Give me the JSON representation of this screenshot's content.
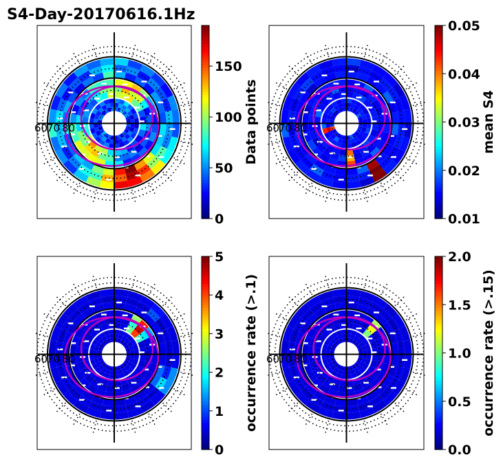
{
  "figure": {
    "title": "S4-Day-20170616.1Hz"
  },
  "chart_data": [
    {
      "type": "heatmap",
      "projection": "polar",
      "inner_labels": [
        "60",
        "70",
        "80"
      ],
      "colorbar": {
        "label": "Data points",
        "range": [
          0,
          190
        ],
        "ticks": [
          0,
          50,
          100,
          150
        ],
        "tick_labels": [
          "0",
          "50",
          "100",
          "150"
        ],
        "colormap": "jet"
      },
      "ring_data": [
        {
          "ring": "outer",
          "values": [
            40,
            30,
            25,
            20,
            20,
            30,
            45,
            60,
            30,
            25,
            20,
            25,
            30,
            40,
            55,
            40,
            30,
            35,
            50,
            80,
            120,
            160,
            180,
            140,
            100,
            70,
            50,
            40
          ]
        },
        {
          "ring": "middle",
          "values": [
            20,
            25,
            60,
            90,
            110,
            120,
            100,
            90,
            70,
            60,
            40,
            30,
            25,
            40,
            60,
            80,
            100,
            120,
            110,
            90,
            70,
            50,
            30,
            20,
            15,
            20,
            30,
            40
          ]
        },
        {
          "ring": "inner",
          "values": [
            10,
            15,
            25,
            30,
            40,
            35,
            30,
            20,
            15,
            20,
            25,
            30,
            20,
            15,
            10,
            12,
            20,
            30,
            25,
            20,
            15,
            10,
            12,
            15,
            20,
            25,
            15,
            10
          ]
        }
      ]
    },
    {
      "type": "heatmap",
      "projection": "polar",
      "inner_labels": [
        "60",
        "70",
        "80"
      ],
      "colorbar": {
        "label": "mean S4",
        "range": [
          0.01,
          0.05
        ],
        "ticks": [
          0.01,
          0.02,
          0.03,
          0.04,
          0.05
        ],
        "tick_labels": [
          "0.01",
          "0.02",
          "0.03",
          "0.04",
          "0.05"
        ],
        "colormap": "jet"
      },
      "ring_data": [
        {
          "ring": "outer",
          "values": [
            0.012,
            0.011,
            0.013,
            0.012,
            0.011,
            0.012,
            0.013,
            0.012,
            0.011,
            0.012,
            0.013,
            0.012,
            0.011,
            0.012,
            0.013,
            0.012,
            0.011,
            0.012,
            0.013,
            0.012,
            0.011,
            0.012,
            0.013,
            0.05,
            0.012,
            0.011,
            0.012,
            0.013
          ]
        },
        {
          "ring": "middle",
          "values": [
            0.012,
            0.013,
            0.011,
            0.012,
            0.013,
            0.012,
            0.011,
            0.012,
            0.013,
            0.012,
            0.011,
            0.012,
            0.013,
            0.012,
            0.011,
            0.012,
            0.013,
            0.012,
            0.011,
            0.012,
            0.013,
            0.04,
            0.011,
            0.012,
            0.013,
            0.012,
            0.011,
            0.012
          ]
        },
        {
          "ring": "inner",
          "values": [
            0.011,
            0.012,
            0.013,
            0.012,
            0.011,
            0.012,
            0.013,
            0.012,
            0.011,
            0.012,
            0.013,
            0.012,
            0.011,
            0.012,
            0.013,
            0.045,
            0.011,
            0.012,
            0.013,
            0.012,
            0.011,
            0.012,
            0.013,
            0.012,
            0.011,
            0.012,
            0.013,
            0.012
          ]
        }
      ]
    },
    {
      "type": "heatmap",
      "projection": "polar",
      "inner_labels": [
        "60",
        "70",
        "80"
      ],
      "colorbar": {
        "label": "occurrence rate (>.1)",
        "range": [
          0,
          5
        ],
        "ticks": [
          0,
          1,
          2,
          3,
          4,
          5
        ],
        "tick_labels": [
          "0",
          "1",
          "2",
          "3",
          "4",
          "5"
        ],
        "colormap": "jet"
      },
      "ring_data": [
        {
          "ring": "outer",
          "values": [
            0,
            0,
            0,
            0.3,
            0,
            0,
            0,
            0,
            0,
            0,
            0,
            0,
            0,
            0,
            0,
            0,
            0,
            0,
            0,
            0,
            0,
            0,
            0,
            0,
            0,
            1.2,
            0.8,
            0
          ]
        },
        {
          "ring": "middle",
          "values": [
            0,
            0,
            1.5,
            4.2,
            2.0,
            0,
            0,
            0,
            0,
            0,
            0,
            0,
            0,
            0,
            0,
            0,
            0,
            0,
            0,
            0,
            0,
            0,
            0,
            0,
            0,
            0,
            0,
            0
          ]
        },
        {
          "ring": "inner",
          "values": [
            0,
            0,
            0,
            0,
            0,
            0,
            0,
            0,
            0,
            0,
            0,
            0,
            0,
            0,
            0,
            0,
            0,
            0,
            0,
            0,
            0,
            0,
            0,
            0,
            0,
            0,
            0,
            0
          ]
        }
      ]
    },
    {
      "type": "heatmap",
      "projection": "polar",
      "inner_labels": [
        "60",
        "70",
        "80"
      ],
      "colorbar": {
        "label": "occurrence rate (>.15)",
        "range": [
          0,
          2
        ],
        "ticks": [
          0,
          0.5,
          1,
          1.5,
          2
        ],
        "tick_labels": [
          "0.0",
          "0.5",
          "1.0",
          "1.5",
          "2.0"
        ],
        "colormap": "jet"
      },
      "ring_data": [
        {
          "ring": "outer",
          "values": [
            0,
            0,
            0,
            0,
            0,
            0,
            0,
            0,
            0,
            0,
            0,
            0,
            0,
            0,
            0,
            0,
            0,
            0,
            0,
            0,
            0,
            0,
            0,
            0,
            0,
            0,
            0,
            0
          ]
        },
        {
          "ring": "middle",
          "values": [
            0,
            0,
            0,
            1.0,
            0,
            0,
            0,
            0,
            0,
            0,
            0,
            0,
            0,
            0,
            0,
            0,
            0,
            0,
            0,
            0,
            0,
            0,
            0,
            0,
            0,
            0,
            0,
            0
          ]
        },
        {
          "ring": "inner",
          "values": [
            0,
            0,
            0,
            0,
            0,
            0,
            0,
            0,
            0,
            0,
            0,
            0,
            0,
            0,
            0,
            0,
            0,
            0,
            0,
            0,
            0,
            0,
            0,
            0,
            0,
            0,
            0,
            0
          ]
        }
      ]
    }
  ]
}
